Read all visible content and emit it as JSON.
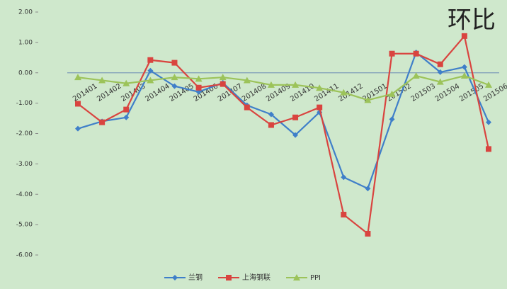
{
  "chart_data": {
    "type": "line",
    "title": "环比",
    "categories": [
      "201401",
      "201402",
      "201403",
      "201404",
      "201405",
      "201406",
      "201407",
      "201408",
      "201409",
      "201410",
      "201411",
      "201412",
      "201501",
      "201502",
      "201503",
      "201504",
      "201505",
      "201506"
    ],
    "series": [
      {
        "name": "兰钢",
        "color": "#3f7fc9",
        "values": [
          -1.84,
          -1.6,
          -1.47,
          0.07,
          -0.44,
          -0.63,
          -0.33,
          -1.07,
          -1.37,
          -2.05,
          -1.3,
          -3.44,
          -3.81,
          -1.53,
          0.67,
          0.02,
          0.19,
          -1.63
        ]
      },
      {
        "name": "上海钢联",
        "color": "#d9443f",
        "values": [
          -1.02,
          -1.63,
          -1.21,
          0.42,
          0.33,
          -0.49,
          -0.37,
          -1.14,
          -1.72,
          -1.47,
          -1.14,
          -4.67,
          -5.3,
          0.63,
          0.63,
          0.28,
          1.21,
          -2.51
        ]
      },
      {
        "name": "PPI",
        "color": "#9cc35a",
        "values": [
          -0.15,
          -0.25,
          -0.35,
          -0.25,
          -0.15,
          -0.2,
          -0.15,
          -0.25,
          -0.4,
          -0.4,
          -0.5,
          -0.65,
          -0.9,
          -0.7,
          -0.1,
          -0.3,
          -0.1,
          -0.4
        ]
      }
    ],
    "ylim": [
      -6,
      2
    ],
    "yticks": [
      {
        "value": -6,
        "label": "-6.00"
      },
      {
        "value": -5,
        "label": "-5.00"
      },
      {
        "value": -4,
        "label": "-4.00"
      },
      {
        "value": -3,
        "label": "-3.00"
      },
      {
        "value": -2,
        "label": "-2.00"
      },
      {
        "value": -1,
        "label": "-1.00"
      },
      {
        "value": 0,
        "label": "0.00"
      },
      {
        "value": 1,
        "label": "1.00"
      },
      {
        "value": 2,
        "label": "2.00"
      }
    ],
    "legend": "bottom"
  }
}
